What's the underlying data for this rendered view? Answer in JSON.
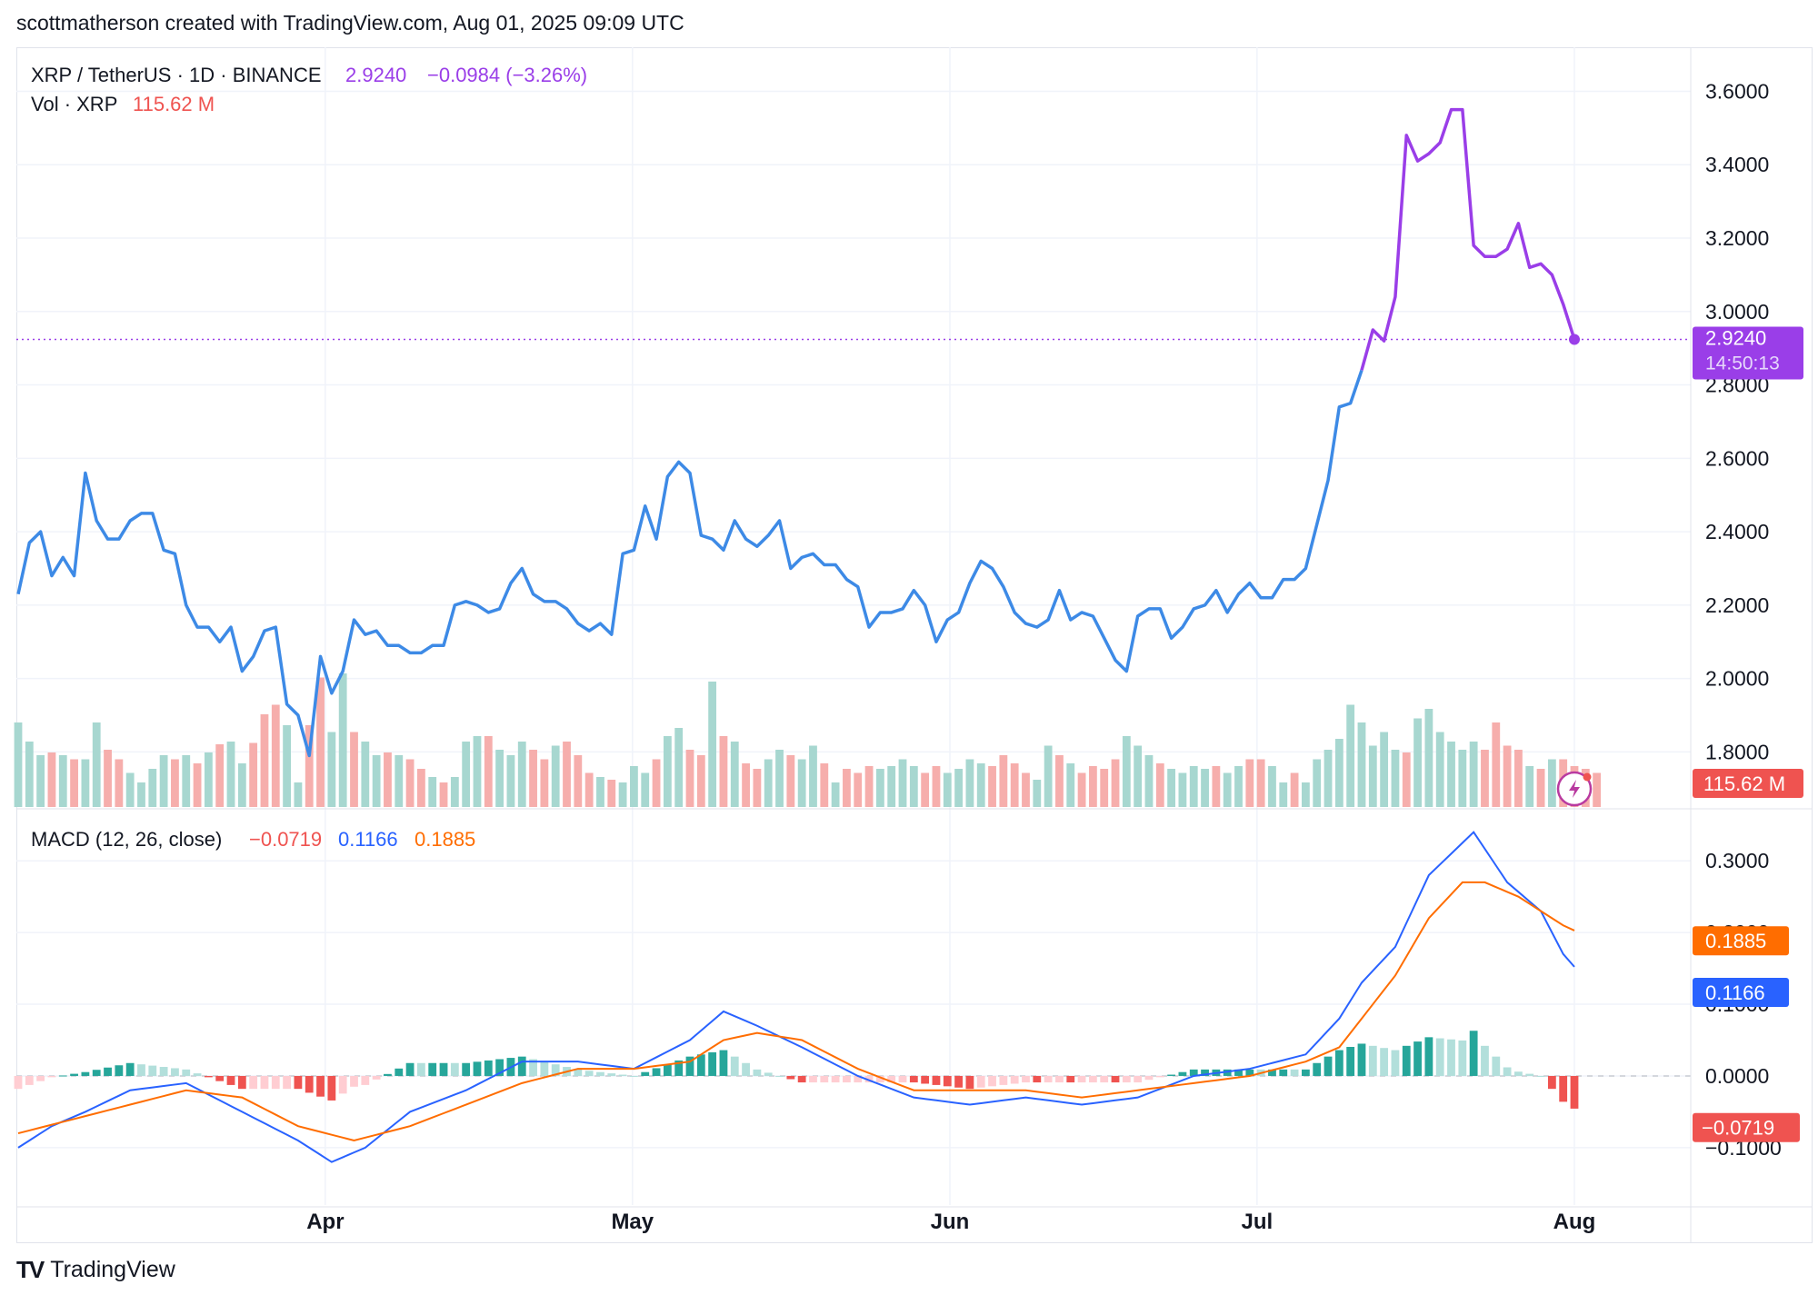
{
  "header": {
    "text": "scottmatherson created with TradingView.com, Aug 01, 2025 09:09 UTC"
  },
  "legend": {
    "symbol": "XRP / TetherUS · 1D · BINANCE",
    "price": "2.9240",
    "change": "−0.0984 (−3.26%)",
    "vol_label": "Vol · XRP",
    "vol_value": "115.62 M",
    "macd_label": "MACD (12, 26, close)",
    "macd_hist": "−0.0719",
    "macd_line": "0.1166",
    "macd_signal": "0.1885"
  },
  "badges": {
    "price": "2.9240",
    "countdown": "14:50:13",
    "volume": "115.62 M",
    "signal": "0.1885",
    "macd": "0.1166",
    "hist": "−0.0719"
  },
  "colors": {
    "up": "#26a69a",
    "down": "#ef5350",
    "up_light": "#b2dfdb",
    "down_light": "#ffcdd2",
    "price_blue": "#3d8ae6",
    "price_purple": "#9a3ee8",
    "macd": "#2962ff",
    "signal": "#ff6d00",
    "grid": "#f0f3fa"
  },
  "footer": {
    "brand": "TradingView",
    "logo_icon": "tradingview-logo-icon"
  },
  "chart_data": [
    {
      "type": "line",
      "name": "price",
      "x_labels": [
        "Apr",
        "May",
        "Jun",
        "Jul",
        "Aug"
      ],
      "x_range": [
        "2025-03-02",
        "2025-08-01"
      ],
      "y_ticks": [
        1.8,
        2.0,
        2.2,
        2.4,
        2.6,
        2.8,
        3.0,
        3.2,
        3.4,
        3.6
      ],
      "ylim": [
        1.65,
        3.72
      ],
      "values": [
        2.23,
        2.37,
        2.4,
        2.28,
        2.33,
        2.28,
        2.56,
        2.43,
        2.38,
        2.38,
        2.43,
        2.45,
        2.45,
        2.35,
        2.34,
        2.2,
        2.14,
        2.14,
        2.1,
        2.14,
        2.02,
        2.06,
        2.13,
        2.14,
        1.93,
        1.9,
        1.79,
        2.06,
        1.96,
        2.02,
        2.16,
        2.12,
        2.13,
        2.09,
        2.09,
        2.07,
        2.07,
        2.09,
        2.09,
        2.2,
        2.21,
        2.2,
        2.18,
        2.19,
        2.26,
        2.3,
        2.23,
        2.21,
        2.21,
        2.19,
        2.15,
        2.13,
        2.15,
        2.12,
        2.34,
        2.35,
        2.47,
        2.38,
        2.55,
        2.59,
        2.56,
        2.39,
        2.38,
        2.35,
        2.43,
        2.38,
        2.36,
        2.39,
        2.43,
        2.3,
        2.33,
        2.34,
        2.31,
        2.31,
        2.27,
        2.25,
        2.14,
        2.18,
        2.18,
        2.19,
        2.24,
        2.2,
        2.1,
        2.16,
        2.18,
        2.26,
        2.32,
        2.3,
        2.25,
        2.18,
        2.15,
        2.14,
        2.16,
        2.24,
        2.16,
        2.18,
        2.17,
        2.11,
        2.05,
        2.02,
        2.17,
        2.19,
        2.19,
        2.11,
        2.14,
        2.19,
        2.2,
        2.24,
        2.18,
        2.23,
        2.26,
        2.22,
        2.22,
        2.27,
        2.27,
        2.3,
        2.42,
        2.54,
        2.74,
        2.75,
        2.84,
        2.95,
        2.92,
        3.04,
        3.48,
        3.41,
        3.43,
        3.46,
        3.55,
        3.55,
        3.18,
        3.15,
        3.15,
        3.17,
        3.24,
        3.12,
        3.13,
        3.1,
        3.02,
        2.924
      ],
      "purple_from_index": 120,
      "last": 2.924
    },
    {
      "type": "bar",
      "name": "volume",
      "values": [
        0.62,
        0.48,
        0.38,
        0.4,
        0.38,
        0.35,
        0.35,
        0.62,
        0.42,
        0.35,
        0.25,
        0.18,
        0.28,
        0.38,
        0.35,
        0.38,
        0.32,
        0.4,
        0.46,
        0.48,
        0.32,
        0.47,
        0.68,
        0.75,
        0.6,
        0.18,
        0.6,
        0.95,
        0.55,
        0.98,
        0.55,
        0.48,
        0.38,
        0.4,
        0.38,
        0.35,
        0.28,
        0.22,
        0.18,
        0.22,
        0.48,
        0.52,
        0.52,
        0.42,
        0.38,
        0.48,
        0.42,
        0.35,
        0.45,
        0.48,
        0.38,
        0.25,
        0.22,
        0.2,
        0.18,
        0.3,
        0.25,
        0.35,
        0.52,
        0.58,
        0.42,
        0.38,
        0.92,
        0.52,
        0.48,
        0.32,
        0.28,
        0.35,
        0.42,
        0.38,
        0.35,
        0.45,
        0.32,
        0.18,
        0.28,
        0.25,
        0.3,
        0.28,
        0.3,
        0.35,
        0.3,
        0.25,
        0.3,
        0.25,
        0.28,
        0.35,
        0.32,
        0.3,
        0.38,
        0.32,
        0.25,
        0.2,
        0.45,
        0.38,
        0.32,
        0.25,
        0.3,
        0.28,
        0.35,
        0.52,
        0.45,
        0.38,
        0.32,
        0.28,
        0.25,
        0.3,
        0.28,
        0.3,
        0.25,
        0.3,
        0.35,
        0.35,
        0.3,
        0.18,
        0.25,
        0.18,
        0.35,
        0.42,
        0.5,
        0.75,
        0.62,
        0.45,
        0.55,
        0.42,
        0.4,
        0.65,
        0.72,
        0.55,
        0.48,
        0.42,
        0.48,
        0.42,
        0.62,
        0.45,
        0.42,
        0.3,
        0.28,
        0.35,
        0.35,
        0.3,
        0.28,
        0.25
      ],
      "up": [
        1,
        1,
        1,
        0,
        1,
        0,
        1,
        1,
        0,
        0,
        1,
        1,
        1,
        1,
        0,
        1,
        0,
        1,
        0,
        1,
        1,
        0,
        0,
        0,
        1,
        1,
        0,
        0,
        1,
        1,
        0,
        1,
        1,
        0,
        1,
        0,
        0,
        1,
        0,
        1,
        1,
        1,
        0,
        1,
        1,
        1,
        0,
        0,
        1,
        0,
        0,
        0,
        1,
        0,
        1,
        1,
        1,
        0,
        1,
        1,
        0,
        0,
        1,
        0,
        1,
        0,
        0,
        1,
        1,
        0,
        1,
        1,
        0,
        1,
        0,
        0,
        0,
        1,
        1,
        1,
        1,
        0,
        0,
        1,
        1,
        1,
        1,
        0,
        0,
        0,
        0,
        1,
        1,
        0,
        1,
        0,
        0,
        0,
        0,
        1,
        1,
        1,
        0,
        1,
        1,
        1,
        1,
        0,
        1,
        1,
        0,
        0,
        1,
        1,
        0,
        1,
        1,
        1,
        1,
        1,
        1,
        1,
        1,
        1,
        0,
        1,
        1,
        1,
        1,
        1,
        1,
        0,
        0,
        0,
        0,
        1,
        0,
        1,
        0,
        0
      ],
      "last": "115.62 M"
    },
    {
      "type": "line",
      "name": "MACD (12, 26, close)",
      "y_ticks": [
        -0.1,
        0.0,
        0.1,
        0.2,
        0.3
      ],
      "ylim": [
        -0.18,
        0.37
      ],
      "macd_x": [
        0,
        3,
        6,
        10,
        15,
        20,
        25,
        28,
        31,
        35,
        40,
        45,
        50,
        55,
        60,
        63,
        66,
        70,
        75,
        80,
        85,
        90,
        95,
        100,
        105,
        110,
        115,
        118,
        120,
        123,
        126,
        130,
        133,
        136,
        138,
        141
      ],
      "macd": [
        -0.1,
        -0.07,
        -0.05,
        -0.02,
        -0.01,
        -0.05,
        -0.09,
        -0.12,
        -0.1,
        -0.05,
        -0.02,
        0.02,
        0.02,
        0.01,
        0.05,
        0.09,
        0.07,
        0.04,
        0.0,
        -0.03,
        -0.04,
        -0.03,
        -0.04,
        -0.03,
        0.0,
        0.01,
        0.03,
        0.08,
        0.13,
        0.18,
        0.28,
        0.34,
        0.27,
        0.23,
        0.17,
        0.1166
      ],
      "signal_x": [
        0,
        5,
        10,
        15,
        20,
        25,
        30,
        35,
        40,
        45,
        50,
        55,
        60,
        63,
        66,
        70,
        75,
        80,
        85,
        90,
        95,
        100,
        105,
        110,
        115,
        118,
        120,
        123,
        126,
        129,
        131,
        134,
        136,
        138,
        141
      ],
      "signal": [
        -0.08,
        -0.06,
        -0.04,
        -0.02,
        -0.03,
        -0.07,
        -0.09,
        -0.07,
        -0.04,
        -0.01,
        0.01,
        0.01,
        0.02,
        0.05,
        0.06,
        0.05,
        0.01,
        -0.02,
        -0.02,
        -0.02,
        -0.03,
        -0.02,
        -0.01,
        0.0,
        0.02,
        0.04,
        0.08,
        0.14,
        0.22,
        0.27,
        0.27,
        0.25,
        0.23,
        0.21,
        0.1885
      ],
      "hist_last": -0.0719
    }
  ]
}
